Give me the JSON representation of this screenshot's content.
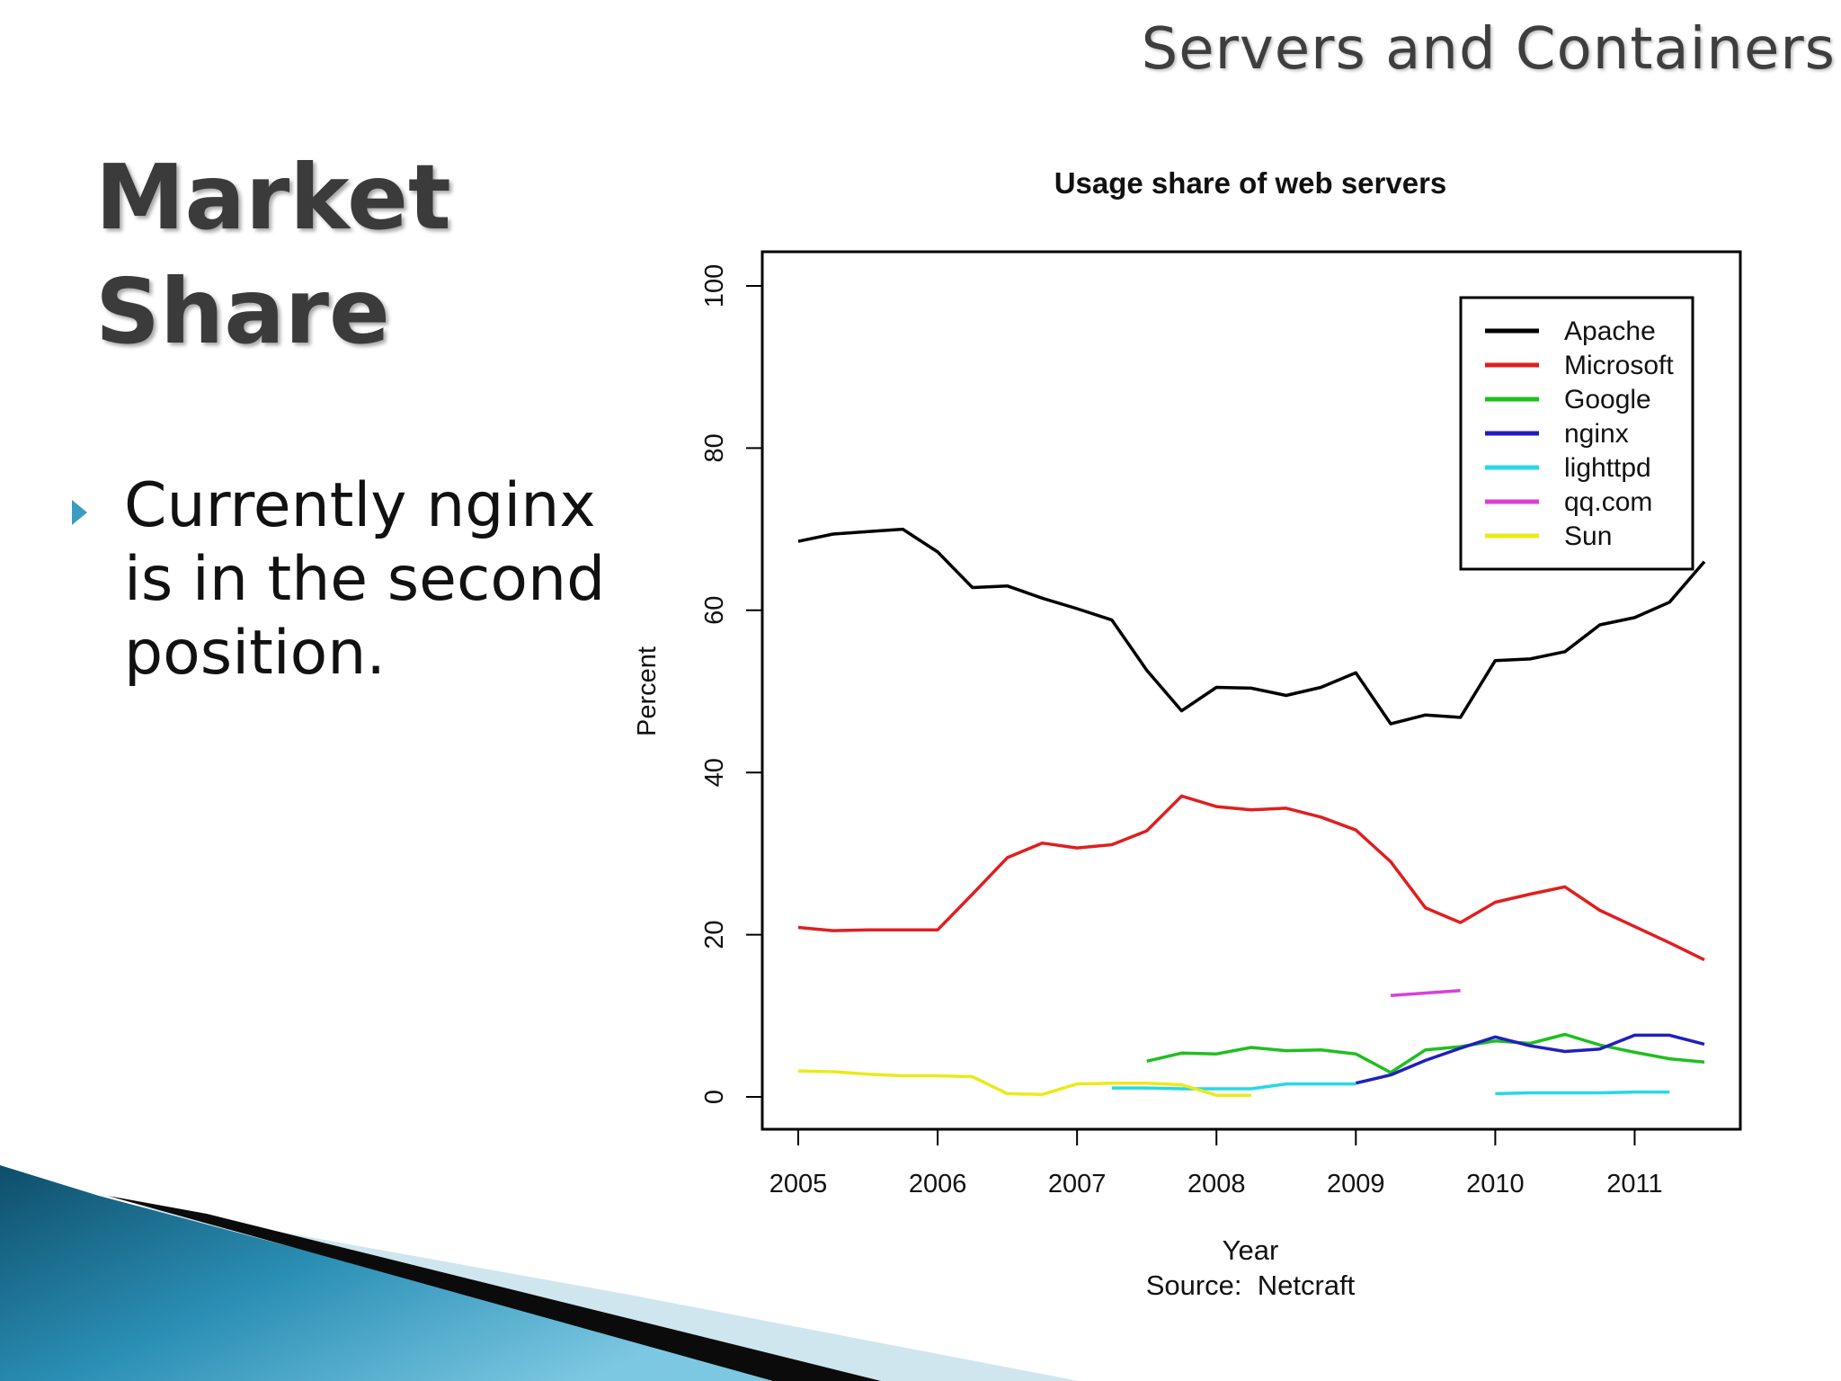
{
  "slide": {
    "header": "Servers and Containers",
    "title_lines": [
      "Market",
      "Share"
    ],
    "bullet": "Currently nginx is in the second position.",
    "accent_color": "#3a9cc0"
  },
  "chart_data": {
    "type": "line",
    "title": "Usage share of web servers",
    "xlabel": "Year",
    "ylabel": "Percent",
    "source": "Source:  Netcraft",
    "xlim": [
      2005,
      2011.5
    ],
    "ylim": [
      0,
      100
    ],
    "xticks": [
      2005,
      2006,
      2007,
      2008,
      2009,
      2010,
      2011
    ],
    "yticks": [
      0,
      20,
      40,
      60,
      80,
      100
    ],
    "grid": false,
    "legend_position": "top-right",
    "series": [
      {
        "name": "Apache",
        "color": "#000000",
        "x": [
          2005.0,
          2005.25,
          2005.5,
          2005.75,
          2006.0,
          2006.25,
          2006.5,
          2006.75,
          2007.0,
          2007.25,
          2007.5,
          2007.75,
          2008.0,
          2008.25,
          2008.5,
          2008.75,
          2009.0,
          2009.25,
          2009.5,
          2009.75,
          2010.0,
          2010.25,
          2010.5,
          2010.75,
          2011.0,
          2011.25,
          2011.5
        ],
        "y": [
          68.5,
          69.4,
          69.7,
          70.0,
          67.2,
          62.8,
          63.0,
          61.5,
          60.2,
          58.8,
          52.6,
          47.6,
          50.5,
          50.4,
          49.5,
          50.5,
          52.3,
          46.0,
          47.1,
          46.8,
          53.8,
          54.0,
          54.9,
          58.2,
          59.1,
          61.0,
          66.0
        ]
      },
      {
        "name": "Microsoft",
        "color": "#df1f1f",
        "x": [
          2005.0,
          2005.25,
          2005.5,
          2005.75,
          2006.0,
          2006.25,
          2006.5,
          2006.75,
          2007.0,
          2007.25,
          2007.5,
          2007.75,
          2008.0,
          2008.25,
          2008.5,
          2008.75,
          2009.0,
          2009.25,
          2009.5,
          2009.75,
          2010.0,
          2010.25,
          2010.5,
          2010.75,
          2011.0,
          2011.25,
          2011.5
        ],
        "y": [
          20.9,
          20.5,
          20.6,
          20.6,
          20.6,
          25.0,
          29.5,
          31.3,
          30.7,
          31.1,
          32.8,
          37.1,
          35.8,
          35.4,
          35.6,
          34.5,
          32.9,
          29.0,
          23.3,
          21.5,
          24.0,
          25.0,
          25.9,
          23.0,
          21.0,
          19.0,
          16.9
        ]
      },
      {
        "name": "Google",
        "color": "#1fbf1f",
        "x": [
          2007.5,
          2007.75,
          2008.0,
          2008.25,
          2008.5,
          2008.75,
          2009.0,
          2009.25,
          2009.5,
          2009.75,
          2010.0,
          2010.25,
          2010.5,
          2010.75,
          2011.0,
          2011.25,
          2011.5
        ],
        "y": [
          4.4,
          5.4,
          5.3,
          6.1,
          5.7,
          5.8,
          5.3,
          3.0,
          5.8,
          6.2,
          6.9,
          6.6,
          7.7,
          6.4,
          5.5,
          4.7,
          4.3
        ]
      },
      {
        "name": "nginx",
        "color": "#1f1fbf",
        "x": [
          2009.0,
          2009.25,
          2009.5,
          2009.75,
          2010.0,
          2010.25,
          2010.5,
          2010.75,
          2011.0,
          2011.25,
          2011.5
        ],
        "y": [
          1.7,
          2.7,
          4.5,
          6.0,
          7.4,
          6.3,
          5.6,
          5.9,
          7.6,
          7.6,
          6.5
        ]
      },
      {
        "name": "lighttpd",
        "color": "#27d8e6",
        "x": [
          2007.25,
          2007.5,
          2007.75,
          2008.0,
          2008.25,
          2008.5,
          2008.75,
          2009.0
        ],
        "y": [
          1.1,
          1.1,
          1.0,
          1.0,
          1.0,
          1.6,
          1.6,
          1.6
        ]
      },
      {
        "name": "lighttpd",
        "color": "#27d8e6",
        "x": [
          2010.0,
          2010.25,
          2010.5,
          2010.75,
          2011.0,
          2011.25
        ],
        "y": [
          0.4,
          0.5,
          0.5,
          0.5,
          0.6,
          0.6
        ]
      },
      {
        "name": "qq.com",
        "color": "#d93fd9",
        "x": [
          2009.25,
          2009.75
        ],
        "y": [
          12.5,
          13.1
        ]
      },
      {
        "name": "Sun",
        "color": "#eaea1a",
        "x": [
          2005.0,
          2005.25,
          2005.5,
          2005.75,
          2006.0,
          2006.25,
          2006.5,
          2006.75,
          2007.0,
          2007.25,
          2007.5,
          2007.75,
          2008.0,
          2008.25
        ],
        "y": [
          3.2,
          3.1,
          2.8,
          2.6,
          2.6,
          2.5,
          0.4,
          0.3,
          1.6,
          1.7,
          1.7,
          1.5,
          0.2,
          0.2
        ]
      }
    ],
    "legend": [
      {
        "label": "Apache",
        "color": "#000000"
      },
      {
        "label": "Microsoft",
        "color": "#df1f1f"
      },
      {
        "label": "Google",
        "color": "#1fbf1f"
      },
      {
        "label": "nginx",
        "color": "#1f1fbf"
      },
      {
        "label": "lighttpd",
        "color": "#27d8e6"
      },
      {
        "label": "qq.com",
        "color": "#d93fd9"
      },
      {
        "label": "Sun",
        "color": "#eaea1a"
      }
    ]
  }
}
